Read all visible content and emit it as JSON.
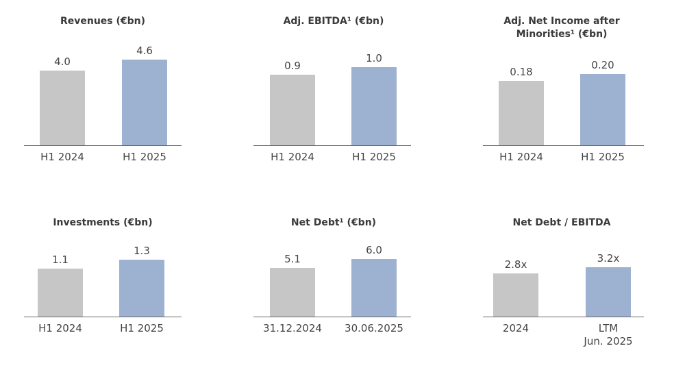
{
  "chart_data": [
    {
      "type": "bar",
      "title": "Revenues (€bn)",
      "categories": [
        "H1 2024",
        "H1 2025"
      ],
      "values": [
        4.0,
        4.6
      ],
      "value_labels": [
        "4.0",
        "4.6"
      ],
      "colors": [
        "#c6c6c6",
        "#9db1d1"
      ]
    },
    {
      "type": "bar",
      "title": "Adj. EBITDA¹ (€bn)",
      "categories": [
        "H1 2024",
        "H1 2025"
      ],
      "values": [
        0.9,
        1.0
      ],
      "value_labels": [
        "0.9",
        "1.0"
      ],
      "colors": [
        "#c6c6c6",
        "#9db1d1"
      ]
    },
    {
      "type": "bar",
      "title": "Adj. Net Income after\nMinorities¹ (€bn)",
      "categories": [
        "H1 2024",
        "H1 2025"
      ],
      "values": [
        0.18,
        0.2
      ],
      "value_labels": [
        "0.18",
        "0.20"
      ],
      "colors": [
        "#c6c6c6",
        "#9db1d1"
      ]
    },
    {
      "type": "bar",
      "title": "Investments (€bn)",
      "categories": [
        "H1 2024",
        "H1 2025"
      ],
      "values": [
        1.1,
        1.3
      ],
      "colors": [
        "#c6c6c6",
        "#9db1d1"
      ]
    },
    {
      "type": "bar",
      "title": "Net Debt¹ (€bn)",
      "categories": [
        "31.12.2024",
        "30.06.2025"
      ],
      "values": [
        5.1,
        6.0
      ],
      "value_labels": [
        "5.1",
        "6.0"
      ],
      "colors": [
        "#c6c6c6",
        "#9db1d1"
      ]
    },
    {
      "type": "bar",
      "title": "Net Debt / EBITDA",
      "categories": [
        "2024",
        "LTM\nJun. 2025"
      ],
      "values": [
        2.8,
        3.2
      ],
      "value_labels": [
        "2.8x",
        "3.2x"
      ],
      "colors": [
        "#c6c6c6",
        "#9db1d1"
      ]
    }
  ]
}
